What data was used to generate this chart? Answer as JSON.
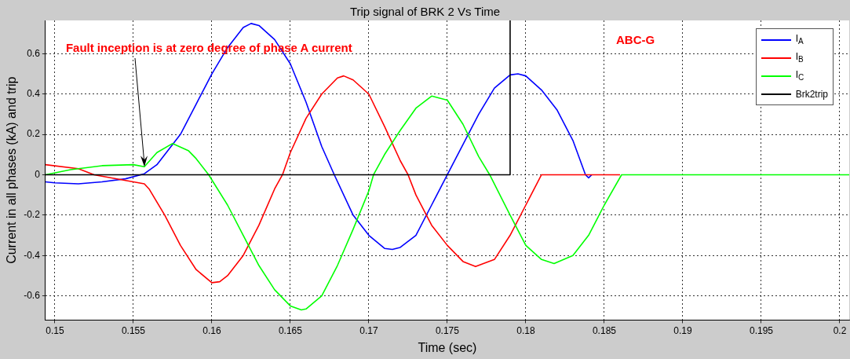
{
  "chart_data": {
    "type": "line",
    "title": "Trip signal of BRK 2 Vs Time",
    "xlabel": "Time (sec)",
    "ylabel": "Current in all phases (kA) and trip",
    "xlim": [
      0.1494,
      0.2006
    ],
    "ylim": [
      -0.72,
      0.765
    ],
    "xticks": [
      0.15,
      0.155,
      0.16,
      0.165,
      0.17,
      0.175,
      0.18,
      0.185,
      0.19,
      0.195,
      0.2
    ],
    "yticks": [
      -0.6,
      -0.4,
      -0.2,
      0,
      0.2,
      0.4,
      0.6
    ],
    "grid": true,
    "legend": "top right",
    "line_style": "solid",
    "marker": "none",
    "annotations": [
      {
        "text": "Fault inception is at zero degree of phase A current",
        "x": 0.1557,
        "y": 0.04
      },
      "ABC-G"
    ],
    "series": [
      {
        "name": "I$_{A}$",
        "color": "#0000ff",
        "x": [
          0.1494,
          0.15,
          0.1515,
          0.153,
          0.1545,
          0.1557,
          0.1565,
          0.158,
          0.159,
          0.16,
          0.161,
          0.162,
          0.1625,
          0.163,
          0.164,
          0.165,
          0.166,
          0.167,
          0.1678,
          0.169,
          0.17,
          0.171,
          0.1715,
          0.172,
          0.173,
          0.174,
          0.175,
          0.176,
          0.177,
          0.178,
          0.179,
          0.1795,
          0.18,
          0.181,
          0.182,
          0.183,
          0.1838,
          0.184,
          0.1842
        ],
        "values": [
          -0.035,
          -0.04,
          -0.045,
          -0.035,
          -0.02,
          0.005,
          0.05,
          0.2,
          0.35,
          0.5,
          0.63,
          0.73,
          0.75,
          0.74,
          0.67,
          0.55,
          0.36,
          0.14,
          0,
          -0.2,
          -0.3,
          -0.365,
          -0.37,
          -0.36,
          -0.3,
          -0.15,
          0,
          0.15,
          0.3,
          0.43,
          0.495,
          0.5,
          0.49,
          0.42,
          0.32,
          0.17,
          0,
          -0.015,
          0
        ]
      },
      {
        "name": "I$_{B}$",
        "color": "#ff0000",
        "x": [
          0.1494,
          0.1515,
          0.1525,
          0.155,
          0.1557,
          0.156,
          0.157,
          0.158,
          0.159,
          0.16,
          0.1605,
          0.161,
          0.162,
          0.163,
          0.164,
          0.1645,
          0.165,
          0.166,
          0.167,
          0.168,
          0.1684,
          0.169,
          0.17,
          0.171,
          0.172,
          0.1725,
          0.173,
          0.174,
          0.175,
          0.176,
          0.1768,
          0.178,
          0.179,
          0.18,
          0.181,
          0.186
        ],
        "values": [
          0.05,
          0.03,
          0,
          -0.035,
          -0.045,
          -0.07,
          -0.2,
          -0.35,
          -0.47,
          -0.535,
          -0.53,
          -0.5,
          -0.4,
          -0.25,
          -0.07,
          0,
          0.11,
          0.28,
          0.4,
          0.48,
          0.49,
          0.47,
          0.4,
          0.24,
          0.07,
          0,
          -0.1,
          -0.25,
          -0.35,
          -0.43,
          -0.455,
          -0.42,
          -0.3,
          -0.15,
          0,
          0
        ]
      },
      {
        "name": "I$_{C}$",
        "color": "#00ff00",
        "x": [
          0.1494,
          0.151,
          0.153,
          0.155,
          0.1557,
          0.1565,
          0.1575,
          0.1585,
          0.159,
          0.1598,
          0.161,
          0.162,
          0.163,
          0.164,
          0.165,
          0.1657,
          0.166,
          0.167,
          0.168,
          0.169,
          0.17,
          0.1703,
          0.171,
          0.172,
          0.173,
          0.174,
          0.175,
          0.176,
          0.177,
          0.1777,
          0.179,
          0.18,
          0.181,
          0.1818,
          0.183,
          0.184,
          0.185,
          0.1861,
          0.2006
        ],
        "values": [
          0,
          0.025,
          0.045,
          0.05,
          0.04,
          0.11,
          0.155,
          0.12,
          0.08,
          0,
          -0.15,
          -0.3,
          -0.45,
          -0.57,
          -0.65,
          -0.67,
          -0.665,
          -0.6,
          -0.45,
          -0.27,
          -0.08,
          0,
          0.1,
          0.22,
          0.33,
          0.39,
          0.37,
          0.25,
          0.09,
          0,
          -0.2,
          -0.35,
          -0.42,
          -0.44,
          -0.4,
          -0.3,
          -0.15,
          0,
          0
        ]
      },
      {
        "name": "Brk2trip",
        "color": "#000000",
        "x": [
          0.1494,
          0.179,
          0.179
        ],
        "values": [
          0,
          0,
          0.765
        ]
      }
    ]
  }
}
